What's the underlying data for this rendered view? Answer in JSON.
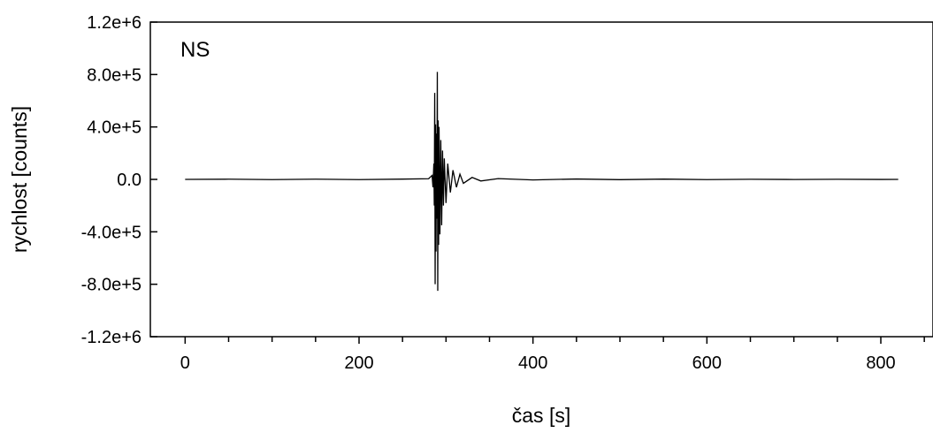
{
  "chart_data": {
    "type": "line",
    "title": "",
    "annotation": "NS",
    "xlabel": "čas [s]",
    "ylabel": "rychlost [counts]",
    "xlim": [
      -40,
      860
    ],
    "ylim": [
      -1200000,
      1200000
    ],
    "x_ticks": [
      0,
      200,
      400,
      600,
      800
    ],
    "x_tick_labels": [
      "0",
      "200",
      "400",
      "600",
      "800"
    ],
    "x_minor_step": 50,
    "y_ticks": [
      1200000,
      800000,
      400000,
      0,
      -400000,
      -800000,
      -1200000
    ],
    "y_tick_labels": [
      "1.2e+6",
      "8.0e+5",
      "4.0e+5",
      "0.0",
      "-4.0e+5",
      "-8.0e+5",
      "-1.2e+6"
    ],
    "grid": false,
    "legend": "none",
    "line_color": "#000000",
    "series": [
      {
        "x": [
          0,
          50,
          100,
          150,
          200,
          250,
          280,
          284,
          285,
          286,
          286.5,
          287,
          287.5,
          288,
          288.5,
          289,
          289.5,
          290,
          290.5,
          291,
          291.5,
          292,
          293,
          294,
          295,
          296,
          297,
          298,
          300,
          302,
          305,
          308,
          312,
          316,
          320,
          330,
          340,
          360,
          400,
          450,
          500,
          550,
          600,
          650,
          700,
          750,
          800,
          820
        ],
        "y": [
          0,
          1500,
          -1500,
          1500,
          -1500,
          2000,
          5000,
          30000,
          -60000,
          120000,
          -200000,
          660000,
          -800000,
          420000,
          -550000,
          350000,
          -300000,
          820000,
          -850000,
          450000,
          -500000,
          400000,
          -420000,
          300000,
          -350000,
          220000,
          -200000,
          160000,
          -180000,
          120000,
          -100000,
          70000,
          -60000,
          40000,
          -30000,
          15000,
          -12000,
          6000,
          -4000,
          3000,
          -2000,
          2000,
          -1500,
          1000,
          -800,
          600,
          -500,
          0
        ]
      }
    ]
  }
}
